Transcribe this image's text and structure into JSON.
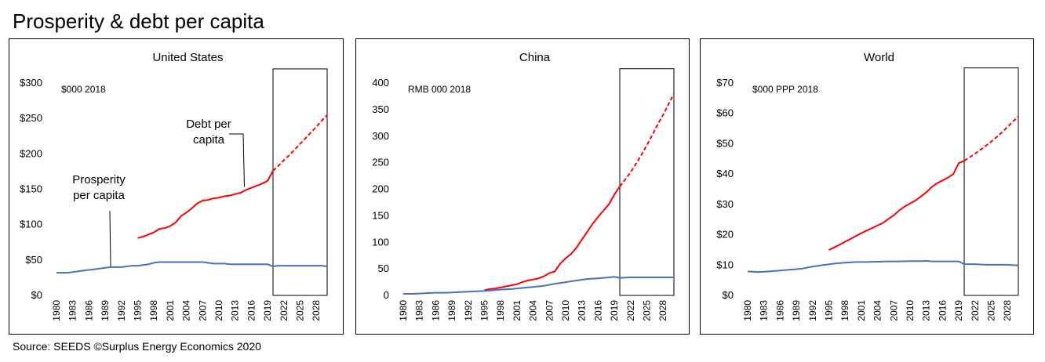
{
  "header": {
    "title": "Prosperity & debt per capita"
  },
  "footer": {
    "source": "Source: SEEDS ©Surplus Energy Economics 2020"
  },
  "chart_data": [
    {
      "type": "line",
      "title": "United States",
      "unit_note": "$000 2018",
      "x_ticks": [
        "1980",
        "1983",
        "1986",
        "1989",
        "1992",
        "1995",
        "1998",
        "2001",
        "2004",
        "2007",
        "2010",
        "2013",
        "2016",
        "2019",
        "2022",
        "2025",
        "2028"
      ],
      "y_ticks": [
        "$0",
        "$50",
        "$100",
        "$150",
        "$200",
        "$250",
        "$300"
      ],
      "ylim": [
        0,
        300
      ],
      "xlim": [
        1980,
        2030
      ],
      "forecast_from": 2020,
      "forecast_box": [
        2020,
        2030,
        0,
        320
      ],
      "annotations": [
        {
          "text": [
            "Debt per",
            "capita"
          ],
          "series": "debt",
          "year": 2015
        },
        {
          "text": [
            "Prosperity",
            "per capita"
          ],
          "series": "prosperity",
          "year": 1990
        }
      ],
      "series": [
        {
          "key": "debt",
          "color": "#ff0000",
          "x": [
            1995,
            1996,
            1997,
            1998,
            1999,
            2000,
            2001,
            2002,
            2003,
            2004,
            2005,
            2006,
            2007,
            2008,
            2009,
            2010,
            2011,
            2012,
            2013,
            2014,
            2015,
            2016,
            2017,
            2018,
            2019,
            2020,
            2021,
            2022,
            2023,
            2024,
            2025,
            2026,
            2027,
            2028,
            2029,
            2030
          ],
          "values": [
            81,
            83,
            86,
            89,
            94,
            95,
            98,
            103,
            112,
            117,
            123,
            130,
            134,
            135,
            137,
            138,
            140,
            141,
            143,
            145,
            149,
            152,
            155,
            158,
            162,
            176,
            183,
            191,
            198,
            206,
            214,
            222,
            230,
            238,
            247,
            255
          ]
        },
        {
          "key": "prosperity",
          "color": "#4472c4",
          "x": [
            1980,
            1981,
            1982,
            1983,
            1984,
            1985,
            1986,
            1987,
            1988,
            1989,
            1990,
            1991,
            1992,
            1993,
            1994,
            1995,
            1996,
            1997,
            1998,
            1999,
            2000,
            2001,
            2002,
            2003,
            2004,
            2005,
            2006,
            2007,
            2008,
            2009,
            2010,
            2011,
            2012,
            2013,
            2014,
            2015,
            2016,
            2017,
            2018,
            2019,
            2020,
            2021,
            2022,
            2023,
            2024,
            2025,
            2026,
            2027,
            2028,
            2029,
            2030
          ],
          "values": [
            32,
            32,
            32,
            33,
            34,
            35,
            36,
            37,
            38,
            39,
            40,
            40,
            40,
            41,
            42,
            42,
            43,
            44,
            46,
            47,
            47,
            47,
            47,
            47,
            47,
            47,
            47,
            47,
            46,
            45,
            45,
            45,
            44,
            44,
            44,
            44,
            44,
            44,
            44,
            44,
            41,
            42,
            42,
            42,
            42,
            42,
            42,
            42,
            42,
            42,
            41
          ]
        }
      ]
    },
    {
      "type": "line",
      "title": "China",
      "unit_note": "RMB 000 2018",
      "x_ticks": [
        "1980",
        "1983",
        "1986",
        "1989",
        "1992",
        "1995",
        "1998",
        "2001",
        "2004",
        "2007",
        "2010",
        "2013",
        "2016",
        "2019",
        "2022",
        "2025",
        "2028"
      ],
      "y_ticks": [
        "0",
        "50",
        "100",
        "150",
        "200",
        "250",
        "300",
        "350",
        "400"
      ],
      "ylim": [
        0,
        400
      ],
      "xlim": [
        1980,
        2030
      ],
      "forecast_from": 2020,
      "forecast_box": [
        2020,
        2030,
        0,
        427
      ],
      "series": [
        {
          "key": "debt",
          "color": "#ff0000",
          "x": [
            1995,
            1996,
            1997,
            1998,
            1999,
            2000,
            2001,
            2002,
            2003,
            2004,
            2005,
            2006,
            2007,
            2008,
            2009,
            2010,
            2011,
            2012,
            2013,
            2014,
            2015,
            2016,
            2017,
            2018,
            2019,
            2020,
            2021,
            2022,
            2023,
            2024,
            2025,
            2026,
            2027,
            2028,
            2029,
            2030
          ],
          "values": [
            10,
            12,
            13,
            15,
            17,
            19,
            21,
            25,
            28,
            30,
            32,
            36,
            42,
            45,
            60,
            70,
            78,
            90,
            105,
            120,
            135,
            148,
            160,
            172,
            190,
            205,
            218,
            232,
            248,
            265,
            283,
            302,
            322,
            340,
            360,
            380
          ]
        },
        {
          "key": "prosperity",
          "color": "#4472c4",
          "x": [
            1980,
            1982,
            1984,
            1986,
            1988,
            1990,
            1992,
            1994,
            1996,
            1998,
            2000,
            2002,
            2004,
            2006,
            2008,
            2010,
            2012,
            2014,
            2016,
            2018,
            2019,
            2020,
            2022,
            2024,
            2026,
            2028,
            2030
          ],
          "values": [
            3,
            3,
            4,
            5,
            5,
            6,
            7,
            8,
            9,
            11,
            12,
            14,
            16,
            18,
            22,
            25,
            28,
            31,
            32,
            34,
            35,
            33,
            34,
            34,
            34,
            34,
            34
          ]
        }
      ]
    },
    {
      "type": "line",
      "title": "World",
      "unit_note": "$000 PPP 2018",
      "x_ticks": [
        "1980",
        "1983",
        "1986",
        "1989",
        "1992",
        "1995",
        "1998",
        "2001",
        "2004",
        "2007",
        "2010",
        "2013",
        "2016",
        "2019",
        "2022",
        "2025",
        "2028"
      ],
      "y_ticks": [
        "$0",
        "$10",
        "$20",
        "$30",
        "$40",
        "$50",
        "$60",
        "$70"
      ],
      "ylim": [
        0,
        70
      ],
      "xlim": [
        1980,
        2030
      ],
      "forecast_from": 2020,
      "forecast_box": [
        2020,
        2030,
        0,
        75
      ],
      "series": [
        {
          "key": "debt",
          "color": "#ff0000",
          "x": [
            1995,
            1996,
            1997,
            1998,
            1999,
            2000,
            2001,
            2002,
            2003,
            2004,
            2005,
            2006,
            2007,
            2008,
            2009,
            2010,
            2011,
            2012,
            2013,
            2014,
            2015,
            2016,
            2017,
            2018,
            2019,
            2020,
            2021,
            2022,
            2023,
            2024,
            2025,
            2026,
            2027,
            2028,
            2029,
            2030
          ],
          "values": [
            15,
            15.8,
            16.7,
            17.7,
            18.6,
            19.6,
            20.5,
            21.4,
            22.2,
            23.1,
            23.9,
            25.2,
            26.4,
            28,
            29.3,
            30.3,
            31.3,
            32.6,
            34,
            35.7,
            37,
            37.9,
            38.8,
            40,
            43.6,
            44.4,
            45.5,
            46.7,
            48,
            49.3,
            50.7,
            52.2,
            53.8,
            55.5,
            57.3,
            59
          ]
        },
        {
          "key": "prosperity",
          "color": "#4472c4",
          "x": [
            1980,
            1982,
            1984,
            1986,
            1988,
            1990,
            1992,
            1994,
            1996,
            1998,
            2000,
            2002,
            2004,
            2006,
            2008,
            2010,
            2012,
            2013,
            2014,
            2016,
            2018,
            2019,
            2020,
            2022,
            2024,
            2026,
            2028,
            2030
          ],
          "values": [
            7.9,
            7.7,
            7.9,
            8.2,
            8.5,
            8.8,
            9.5,
            10,
            10.5,
            10.8,
            11,
            11,
            11.1,
            11.2,
            11.2,
            11.3,
            11.3,
            11.4,
            11.2,
            11.2,
            11.2,
            11.2,
            10.3,
            10.3,
            10.1,
            10.1,
            10.1,
            9.9
          ]
        }
      ]
    }
  ]
}
